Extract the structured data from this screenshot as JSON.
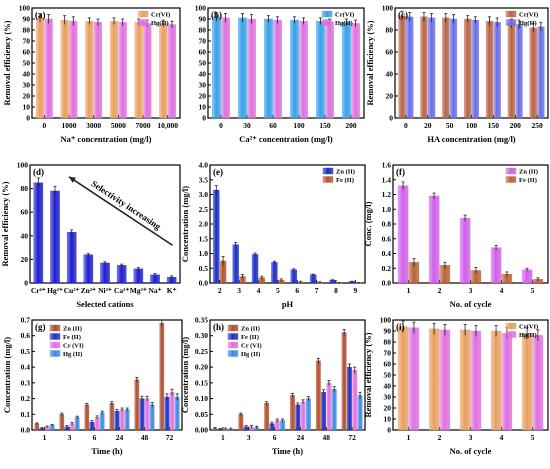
{
  "chart_data": [
    {
      "id": "a",
      "panel_label": "(a)",
      "type": "bar",
      "categories": [
        "0",
        "1000",
        "3000",
        "5000",
        "7000",
        "10,000"
      ],
      "series": [
        {
          "name": "Cr(VI)",
          "values": [
            91,
            89,
            88,
            88,
            87,
            86
          ]
        },
        {
          "name": "Hg(II)",
          "values": [
            90,
            88,
            87,
            87,
            86,
            85
          ]
        }
      ],
      "errors": [
        4,
        4,
        3,
        3,
        3,
        3
      ],
      "xlabel": "Na⁺ concentration (mg/l)",
      "ylabel": "Removal efficiency (%)",
      "ylim": [
        0,
        100
      ],
      "yticks": [
        "0",
        "10",
        "20",
        "30",
        "40",
        "50",
        "60",
        "70",
        "80",
        "90",
        "100"
      ],
      "colors": {
        "Cr(VI)": "#e8a060",
        "Hg(II)": "#e070e0"
      },
      "legend": "top-right"
    },
    {
      "id": "b",
      "panel_label": "(b)",
      "type": "bar",
      "categories": [
        "0",
        "30",
        "60",
        "100",
        "150",
        "200"
      ],
      "series": [
        {
          "name": "Cr(VI)",
          "values": [
            92,
            91,
            90,
            89,
            88,
            87
          ]
        },
        {
          "name": "Hg(II)",
          "values": [
            91,
            90,
            89,
            88,
            87,
            86
          ]
        }
      ],
      "errors": [
        4,
        4,
        3,
        3,
        3,
        3
      ],
      "xlabel": "Ca²⁺ concentration (mg/l)",
      "ylabel": "",
      "ylim": [
        0,
        100
      ],
      "yticks": [
        "0",
        "10",
        "20",
        "30",
        "40",
        "50",
        "60",
        "70",
        "80",
        "90",
        "100"
      ],
      "colors": {
        "Cr(VI)": "#3aa0e8",
        "Hg(II)": "#e070e0"
      },
      "legend": "top-right"
    },
    {
      "id": "c",
      "panel_label": "(c)",
      "type": "bar",
      "categories": [
        "0",
        "20",
        "50",
        "100",
        "150",
        "200",
        "250"
      ],
      "series": [
        {
          "name": "Cr(VI)",
          "values": [
            93,
            92,
            91,
            90,
            88,
            86,
            82
          ]
        },
        {
          "name": "Hg(II)",
          "values": [
            92,
            91,
            90,
            89,
            87,
            85,
            83
          ]
        }
      ],
      "errors": [
        4,
        4,
        4,
        3,
        4,
        4,
        4
      ],
      "xlabel": "HA concentration (mg/l)",
      "ylabel": "Removal efficiency (%)",
      "ylim": [
        0,
        100
      ],
      "yticks": [
        "0",
        "20",
        "40",
        "60",
        "80",
        "100"
      ],
      "colors": {
        "Cr(VI)": "#b86448",
        "Hg(II)": "#6a6ee8"
      },
      "legend": "top-right"
    },
    {
      "id": "d",
      "panel_label": "(d)",
      "type": "bar",
      "categories": [
        "Cr⁶⁺",
        "Hg²⁺",
        "Cu²⁺",
        "Zn²⁺",
        "Ni²⁺",
        "Ca²⁺",
        "Mg²⁺",
        "Na⁺",
        "K⁺"
      ],
      "series": [
        {
          "name": "",
          "values": [
            85,
            78,
            43,
            24,
            17,
            15,
            12,
            7,
            5
          ]
        }
      ],
      "errors": [
        4,
        4,
        2,
        1,
        1,
        1,
        1,
        1,
        1
      ],
      "xlabel": "Selected cations",
      "ylabel": "Removal efficiency (%)",
      "ylim": [
        0,
        100
      ],
      "yticks": [
        "0",
        "20",
        "40",
        "60",
        "80",
        "100"
      ],
      "annotation": "Selectivity increasing",
      "colors": {
        "bar": "#1f1fd0"
      }
    },
    {
      "id": "e",
      "panel_label": "(e)",
      "type": "bar",
      "categories": [
        "2",
        "3",
        "4",
        "5",
        "6",
        "7",
        "8",
        "9"
      ],
      "series": [
        {
          "name": "Zn (II)",
          "values": [
            3.15,
            1.3,
            0.97,
            0.7,
            0.45,
            0.28,
            0.1,
            0.05
          ]
        },
        {
          "name": "Fe (II)",
          "values": [
            0.75,
            0.22,
            0.18,
            0.1,
            0.03,
            0.02,
            0.01,
            0.01
          ]
        }
      ],
      "errors": [
        0.15,
        0.07,
        0.05,
        0.04,
        0.03,
        0.02,
        0.01,
        0.01
      ],
      "xlabel": "pH",
      "ylabel": "Concentration (mg/l)",
      "ylim": [
        0,
        4.0
      ],
      "yticks": [
        "0.0",
        "0.5",
        "1.0",
        "1.5",
        "2.0",
        "2.5",
        "3.0",
        "3.5",
        "4.0"
      ],
      "colors": {
        "Zn (II)": "#1a2ec8",
        "Fe (II)": "#b5542d"
      },
      "legend": "top-right"
    },
    {
      "id": "f",
      "panel_label": "(f)",
      "type": "bar",
      "categories": [
        "1",
        "2",
        "3",
        "4",
        "5"
      ],
      "series": [
        {
          "name": "Zn (II)",
          "values": [
            1.32,
            1.18,
            0.88,
            0.48,
            0.18
          ]
        },
        {
          "name": "Fe (II)",
          "values": [
            0.28,
            0.24,
            0.17,
            0.12,
            0.05
          ]
        }
      ],
      "errors": [
        0.05,
        0.04,
        0.04,
        0.03,
        0.02
      ],
      "xlabel": "No. of cycle",
      "ylabel": "Conc. (mg/l)",
      "ylim": [
        0,
        1.6
      ],
      "yticks": [
        "0.0",
        "0.2",
        "0.4",
        "0.6",
        "0.8",
        "1.0",
        "1.2",
        "1.4",
        "1.6"
      ],
      "colors": {
        "Zn (II)": "#d060e8",
        "Fe (II)": "#b86438"
      },
      "legend": "top-right"
    },
    {
      "id": "g",
      "panel_label": "(g)",
      "type": "bar",
      "categories": [
        "1",
        "3",
        "6",
        "24",
        "48",
        "72"
      ],
      "series": [
        {
          "name": "Zn (II)",
          "values": [
            0.04,
            0.1,
            0.16,
            0.17,
            0.32,
            0.68
          ]
        },
        {
          "name": "Fe (II)",
          "values": [
            0.01,
            0.02,
            0.05,
            0.12,
            0.2,
            0.21
          ]
        },
        {
          "name": "Cr (VI)",
          "values": [
            0.02,
            0.04,
            0.08,
            0.13,
            0.2,
            0.24
          ]
        },
        {
          "name": "Hg (II)",
          "values": [
            0.03,
            0.08,
            0.11,
            0.13,
            0.16,
            0.21
          ]
        }
      ],
      "errors": [
        0.005,
        0.008,
        0.01,
        0.01,
        0.015,
        0.02
      ],
      "xlabel": "Time (h)",
      "ylabel": "Concentration (mg/l)",
      "ylim": [
        0,
        0.7
      ],
      "yticks": [
        "0.0",
        "0.1",
        "0.2",
        "0.3",
        "0.4",
        "0.5",
        "0.6",
        "0.7"
      ],
      "colors": {
        "Zn (II)": "#b05030",
        "Fe (II)": "#1a2ec8",
        "Cr (VI)": "#e070e0",
        "Hg (II)": "#3a8ae0"
      },
      "legend": "top-left"
    },
    {
      "id": "h",
      "panel_label": "(h)",
      "type": "bar",
      "categories": [
        "1",
        "3",
        "6",
        "24",
        "48",
        "72"
      ],
      "series": [
        {
          "name": "Zn (II)",
          "values": [
            0.005,
            0.05,
            0.085,
            0.11,
            0.22,
            0.31
          ]
        },
        {
          "name": "Fe (II)",
          "values": [
            0.002,
            0.01,
            0.02,
            0.08,
            0.12,
            0.2
          ]
        },
        {
          "name": "Cr (VI)",
          "values": [
            0.003,
            0.01,
            0.03,
            0.09,
            0.15,
            0.19
          ]
        },
        {
          "name": "Hg (II)",
          "values": [
            0.003,
            0.008,
            0.03,
            0.1,
            0.13,
            0.11
          ]
        }
      ],
      "errors": [
        0.003,
        0.004,
        0.005,
        0.006,
        0.008,
        0.01
      ],
      "xlabel": "Time (h)",
      "ylabel": "Concentration (mg/l)",
      "ylim": [
        0,
        0.35
      ],
      "yticks": [
        "0.00",
        "0.05",
        "0.10",
        "0.15",
        "0.20",
        "0.25",
        "0.30",
        "0.35"
      ],
      "colors": {
        "Zn (II)": "#b05030",
        "Fe (II)": "#1a2ec8",
        "Cr (VI)": "#e070e0",
        "Hg (II)": "#3a8ae0"
      },
      "legend": "top-left"
    },
    {
      "id": "i",
      "panel_label": "(i)",
      "type": "bar",
      "categories": [
        "1",
        "2",
        "3",
        "4",
        "5"
      ],
      "series": [
        {
          "name": "Cr(VI)",
          "values": [
            94,
            92,
            91,
            90,
            88
          ]
        },
        {
          "name": "Hg(II)",
          "values": [
            93,
            91,
            90,
            88,
            86
          ]
        }
      ],
      "errors": [
        5,
        5,
        5,
        5,
        5
      ],
      "xlabel": "No. of cycle",
      "ylabel": "Removal efficiency (%)",
      "ylim": [
        0,
        100
      ],
      "yticks": [
        "0",
        "10",
        "20",
        "30",
        "40",
        "50",
        "60",
        "70",
        "80",
        "90",
        "100"
      ],
      "colors": {
        "Cr(VI)": "#e8a060",
        "Hg(II)": "#e070e0"
      },
      "legend": "top-right"
    }
  ]
}
